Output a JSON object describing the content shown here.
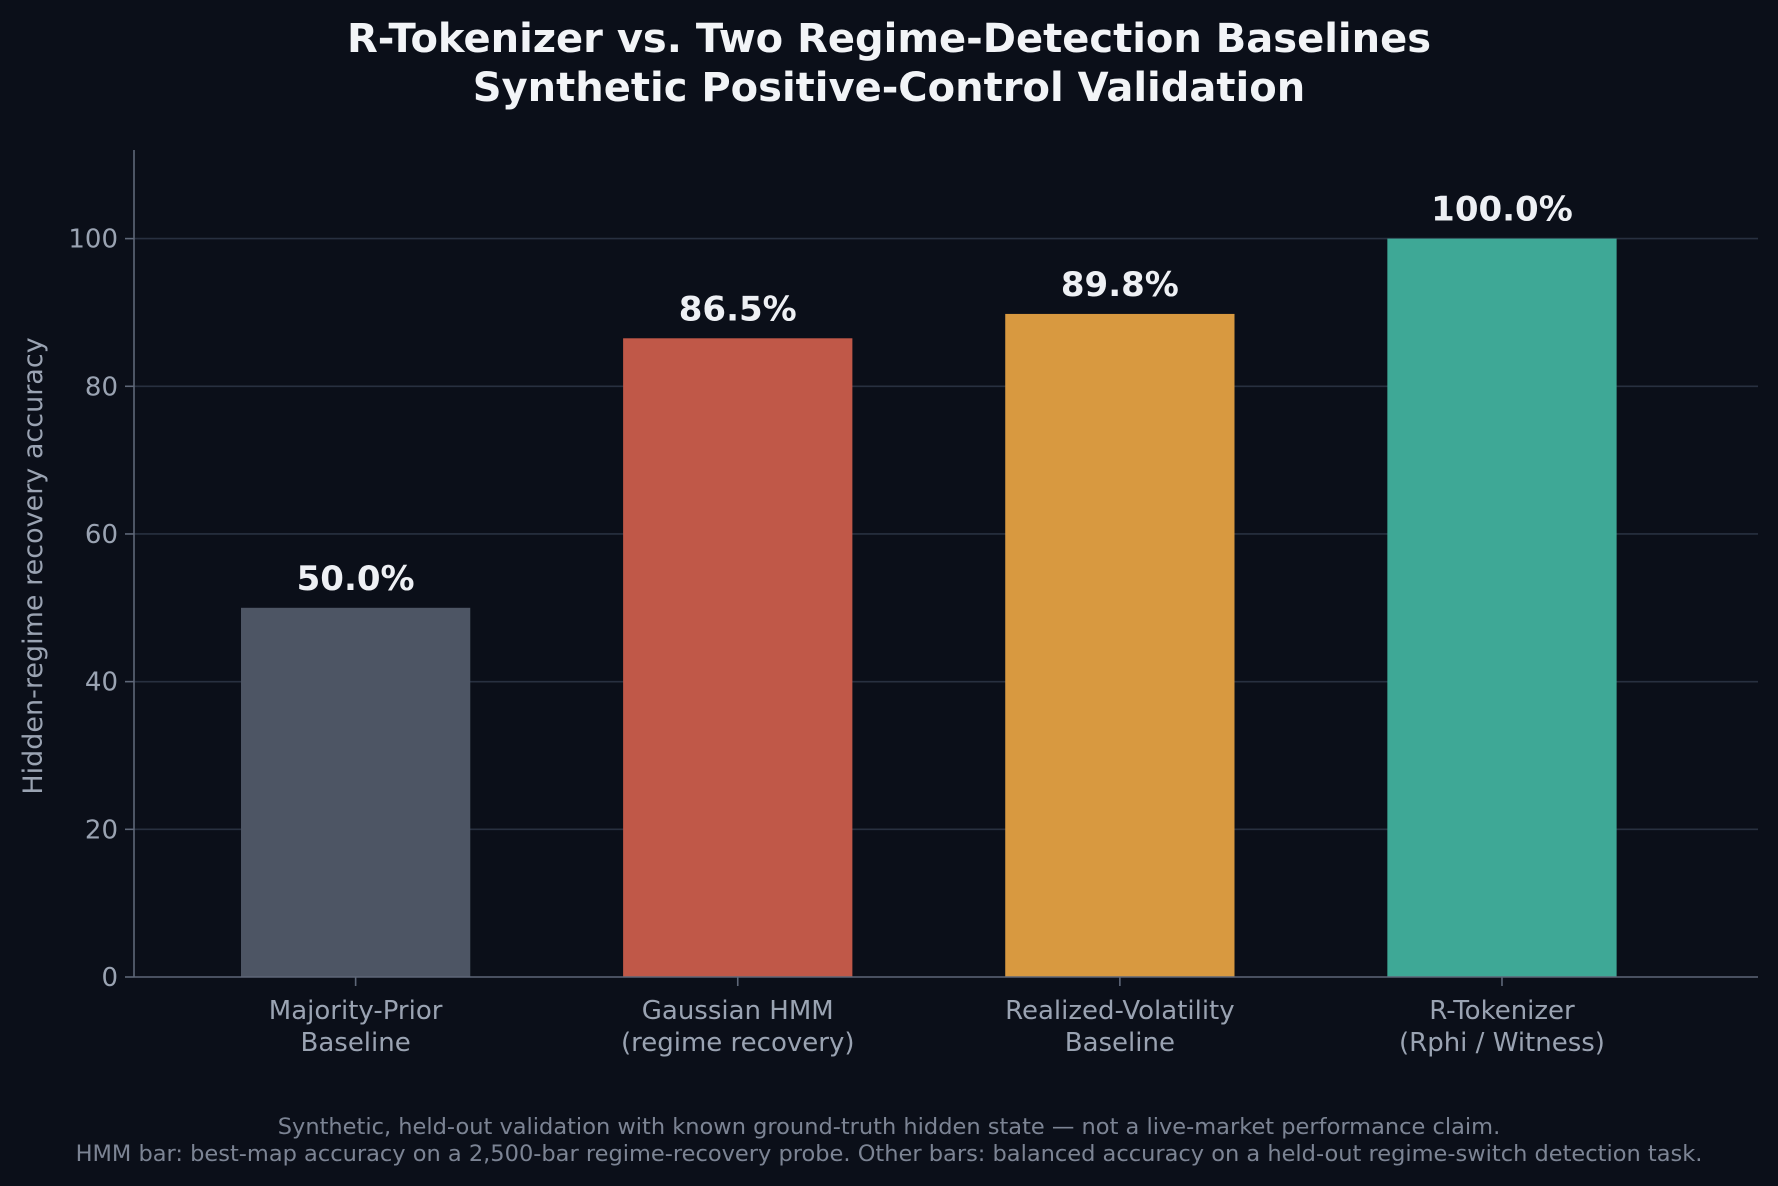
{
  "chart_data": {
    "type": "bar",
    "title_lines": [
      "R-Tokenizer vs. Two Regime-Detection Baselines",
      "Synthetic Positive-Control Validation"
    ],
    "ylabel": "Hidden-regime recovery accuracy",
    "xlabel": "",
    "ylim": [
      0,
      112
    ],
    "yticks": [
      0,
      20,
      40,
      60,
      80,
      100
    ],
    "grid": true,
    "categories": [
      [
        "Majority-Prior",
        "Baseline"
      ],
      [
        "Gaussian HMM",
        "(regime recovery)"
      ],
      [
        "Realized-Volatility",
        "Baseline"
      ],
      [
        "R-Tokenizer",
        "(Rphi / Witness)"
      ]
    ],
    "values": [
      50.0,
      86.5,
      89.8,
      100.0
    ],
    "value_labels": [
      "50.0%",
      "86.5%",
      "89.8%",
      "100.0%"
    ],
    "colors": [
      "#4d5564",
      "#c05848",
      "#d89940",
      "#3ea896"
    ],
    "footnotes": [
      "Synthetic, held-out validation with known ground-truth hidden state — not a live-market performance claim.",
      "HMM bar: best-map accuracy on a 2,500-bar regime-recovery probe. Other bars: balanced accuracy on a held-out regime-switch detection task."
    ]
  }
}
